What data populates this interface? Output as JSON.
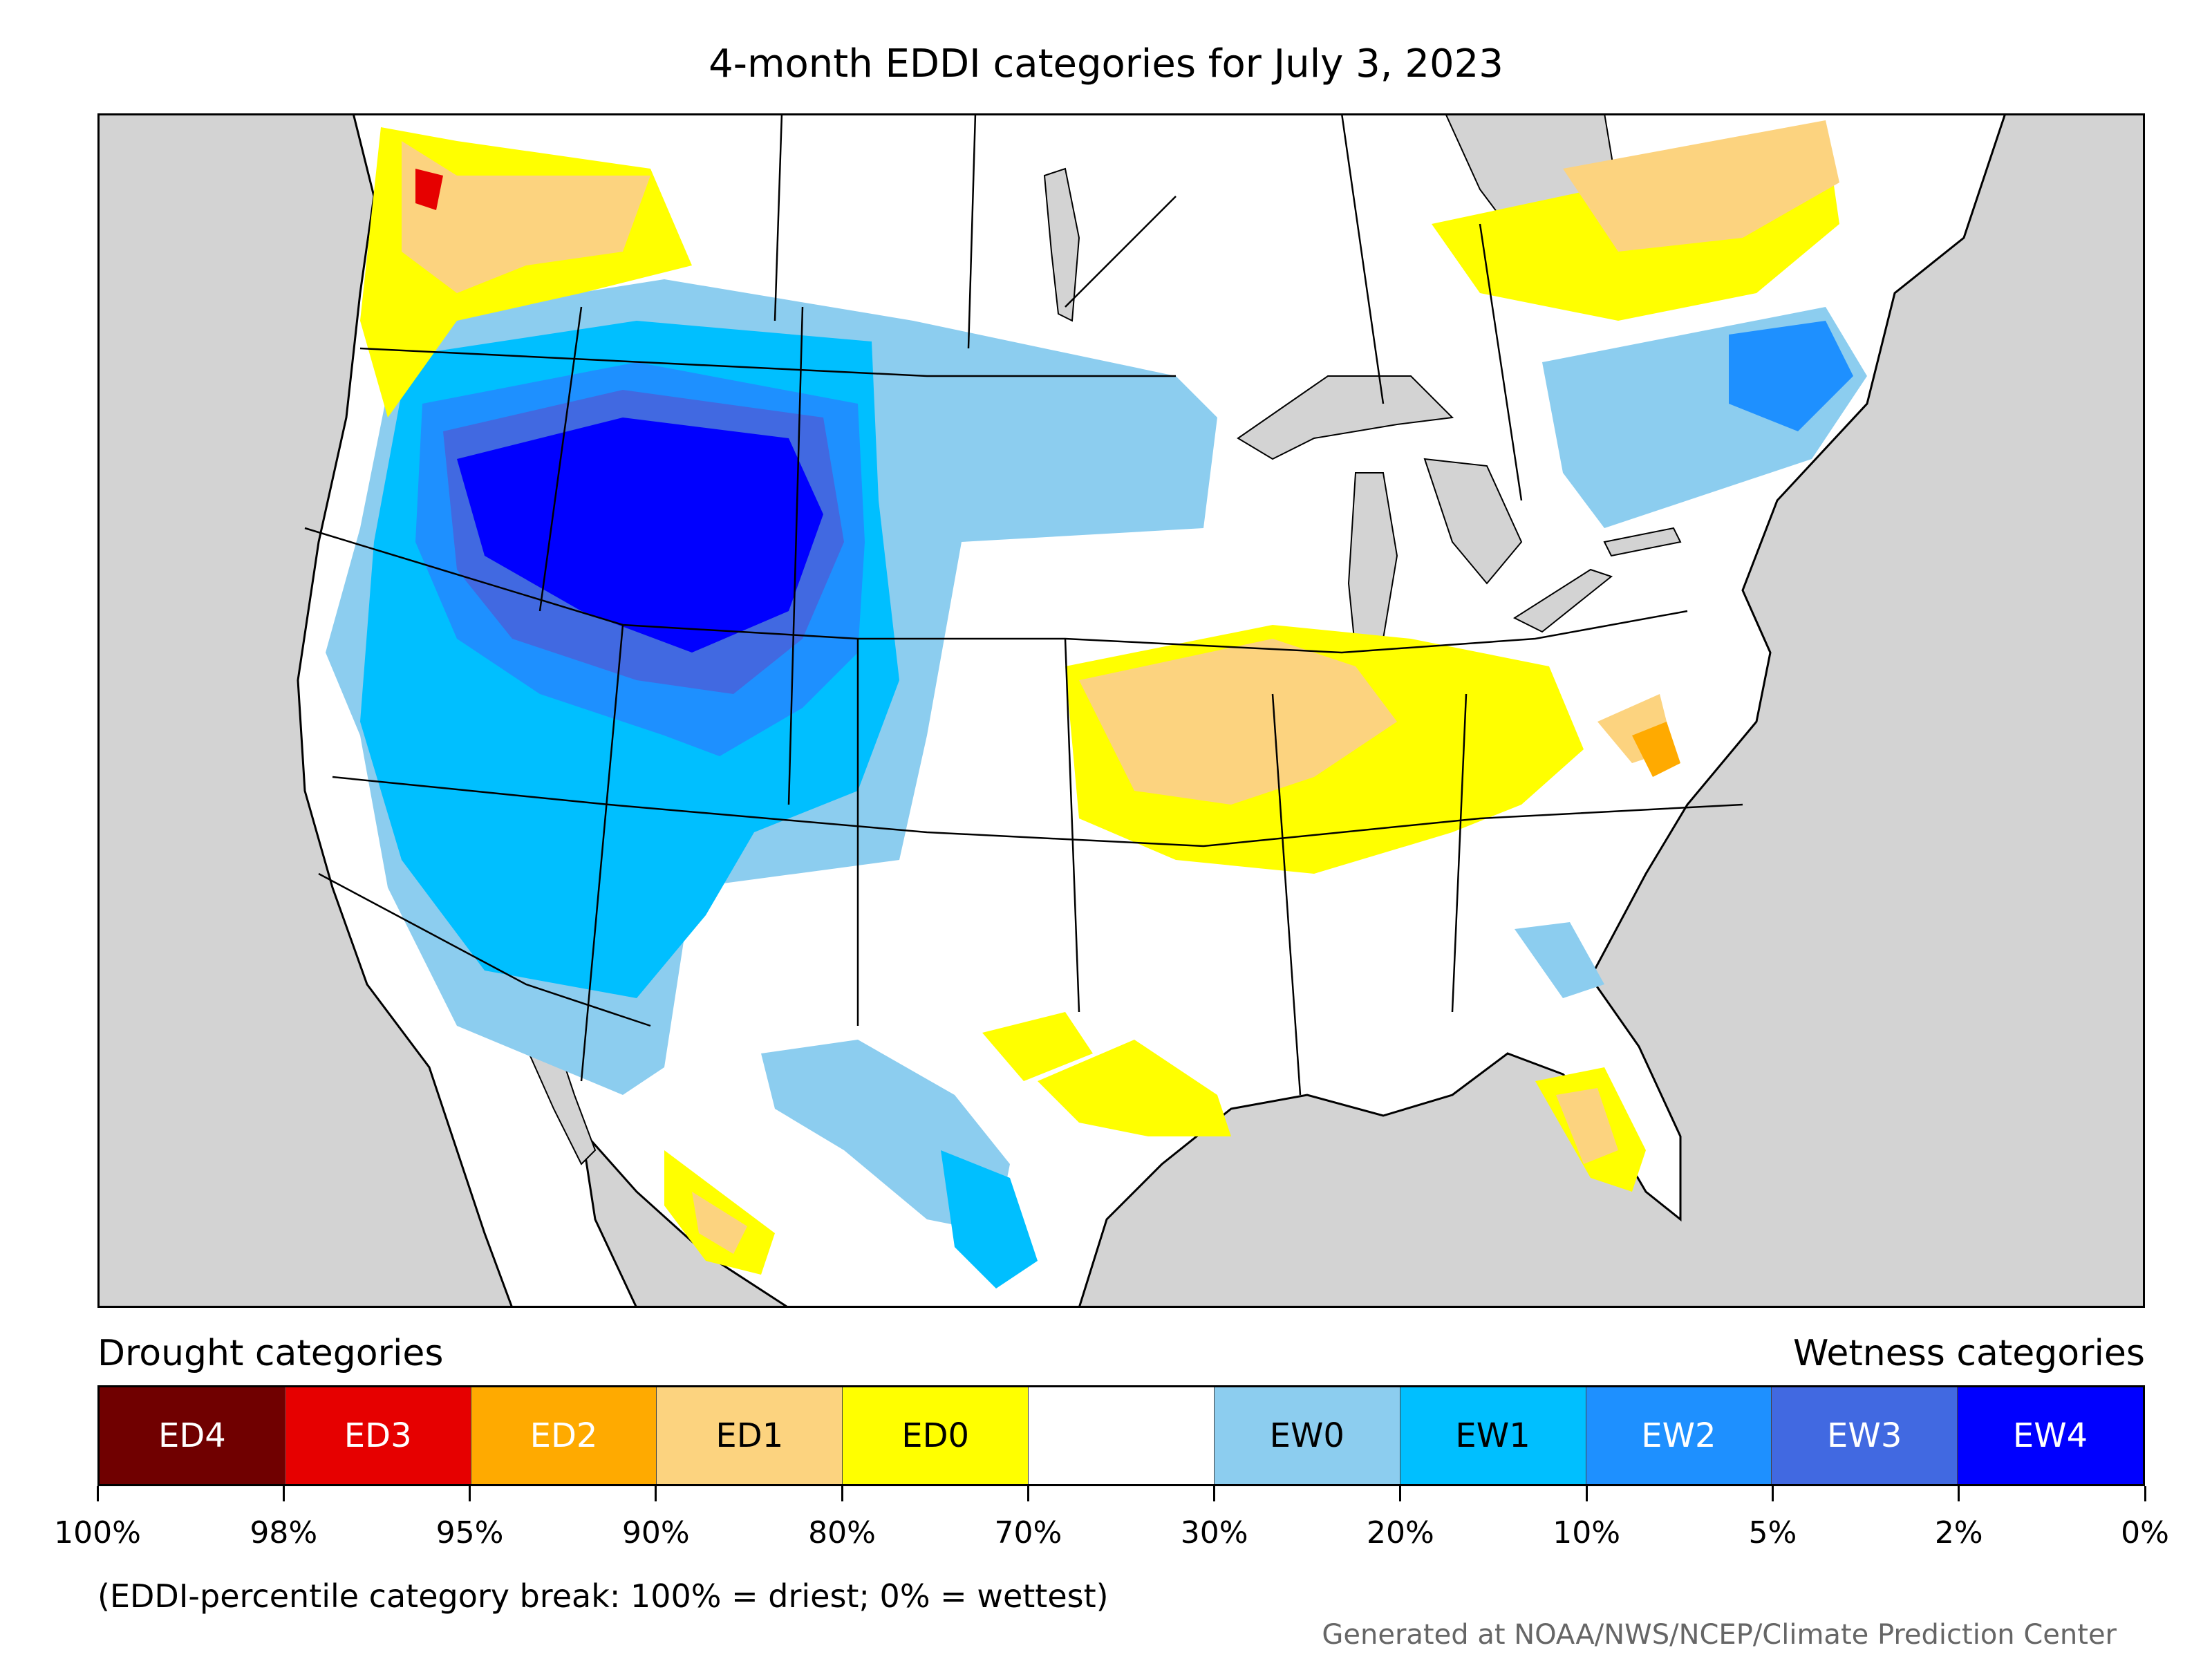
{
  "title": "4-month EDDI categories for July 3, 2023",
  "legend": {
    "drought_heading": "Drought categories",
    "wetness_heading": "Wetness categories",
    "categories": [
      {
        "label": "ED4",
        "color": "#700000",
        "text_color": "#ffffff"
      },
      {
        "label": "ED3",
        "color": "#e60000",
        "text_color": "#ffffff"
      },
      {
        "label": "ED2",
        "color": "#ffaa00",
        "text_color": "#ffffff"
      },
      {
        "label": "ED1",
        "color": "#fcd37f",
        "text_color": "#000000"
      },
      {
        "label": "ED0",
        "color": "#ffff00",
        "text_color": "#000000"
      },
      {
        "label": "",
        "color": "#ffffff",
        "text_color": "#000000"
      },
      {
        "label": "EW0",
        "color": "#8ccdef",
        "text_color": "#000000"
      },
      {
        "label": "EW1",
        "color": "#00bfff",
        "text_color": "#000000"
      },
      {
        "label": "EW2",
        "color": "#1e90ff",
        "text_color": "#ffffff"
      },
      {
        "label": "EW3",
        "color": "#4169e1",
        "text_color": "#ffffff"
      },
      {
        "label": "EW4",
        "color": "#0000ff",
        "text_color": "#ffffff"
      }
    ],
    "ticks": [
      "100%",
      "98%",
      "95%",
      "90%",
      "80%",
      "70%",
      "30%",
      "20%",
      "10%",
      "5%",
      "2%",
      "0%"
    ]
  },
  "footnote": "(EDDI-percentile category break: 100% = driest; 0% = wettest)",
  "credit": "Generated at NOAA/NWS/NCEP/Climate Prediction Center",
  "map": {
    "ocean_color": "#d3d3d3",
    "land_color": "#ffffff",
    "border_color": "#000000"
  }
}
